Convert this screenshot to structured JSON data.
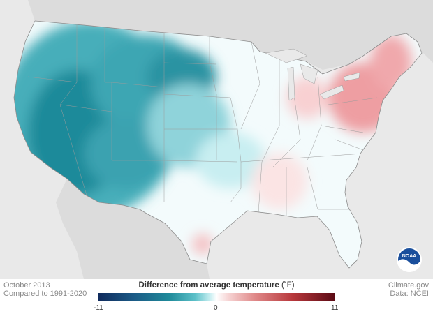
{
  "meta": {
    "date": "October 2013",
    "baseline": "Compared to 1991-2020",
    "credit": "Climate.gov",
    "source": "Data: NCEI"
  },
  "legend": {
    "title": "Difference from average temperature",
    "unit": "(˚F)",
    "min_label": "-11",
    "mid_label": "0",
    "max_label": "11",
    "min_value": -11,
    "max_value": 11
  },
  "logo": {
    "text": "NOAA"
  },
  "colors": {
    "cold": "#1f8a9a",
    "neutral": "#ffffff",
    "warm": "#d8646a",
    "background": "#e9e9e9",
    "land_outside": "#d6d6d6"
  }
}
